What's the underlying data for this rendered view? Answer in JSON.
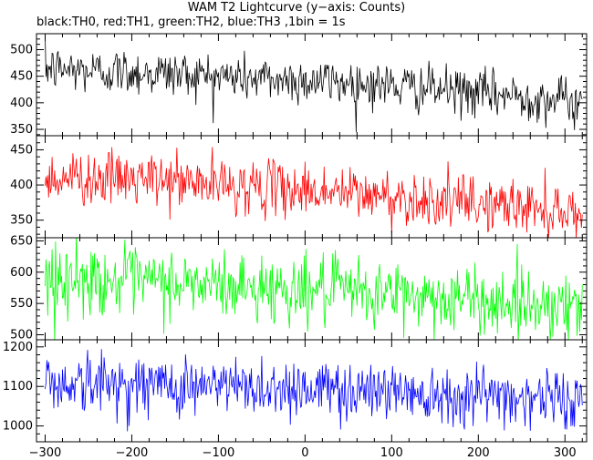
{
  "chart_data": {
    "type": "line",
    "title": "WAM T2 Lightcurve (y−axis: Counts)",
    "subtitle": "black:TH0, red:TH1, green:TH2, blue:TH3 ,1bin = 1s",
    "xlim": [
      -310,
      325
    ],
    "x_ticks": [
      -300,
      -200,
      -100,
      0,
      100,
      200,
      300
    ],
    "grid": false,
    "panels": [
      {
        "name": "TH0",
        "color": "#000000",
        "ylim": [
          338,
          530
        ],
        "y_ticks": [
          350,
          400,
          450,
          500
        ],
        "x": [
          -300,
          -250,
          -200,
          -150,
          -100,
          -50,
          0,
          50,
          100,
          150,
          200,
          250,
          300,
          320
        ],
        "values": [
          465,
          460,
          458,
          455,
          450,
          445,
          442,
          438,
          432,
          425,
          418,
          412,
          405,
          395
        ],
        "noise": 22
      },
      {
        "name": "TH1",
        "color": "#ff0000",
        "ylim": [
          325,
          470
        ],
        "y_ticks": [
          350,
          400,
          450
        ],
        "x": [
          -300,
          -250,
          -200,
          -150,
          -100,
          -50,
          0,
          50,
          100,
          150,
          200,
          250,
          300,
          320
        ],
        "values": [
          412,
          410,
          408,
          405,
          400,
          397,
          393,
          388,
          383,
          378,
          373,
          370,
          365,
          360
        ],
        "noise": 19
      },
      {
        "name": "TH2",
        "color": "#00ff00",
        "ylim": [
          492,
          655
        ],
        "y_ticks": [
          500,
          550,
          600,
          650
        ],
        "x": [
          -300,
          -250,
          -200,
          -150,
          -100,
          -50,
          0,
          50,
          100,
          150,
          200,
          250,
          300,
          320
        ],
        "values": [
          590,
          588,
          585,
          582,
          578,
          575,
          572,
          568,
          565,
          560,
          555,
          552,
          548,
          545
        ],
        "noise": 27
      },
      {
        "name": "TH3",
        "color": "#0000ff",
        "ylim": [
          960,
          1218
        ],
        "y_ticks": [
          1000,
          1100,
          1200
        ],
        "x": [
          -300,
          -250,
          -200,
          -150,
          -100,
          -50,
          0,
          50,
          100,
          150,
          200,
          250,
          300,
          320
        ],
        "values": [
          1110,
          1108,
          1105,
          1103,
          1100,
          1098,
          1095,
          1092,
          1090,
          1085,
          1080,
          1075,
          1070,
          1065
        ],
        "noise": 38
      }
    ]
  }
}
